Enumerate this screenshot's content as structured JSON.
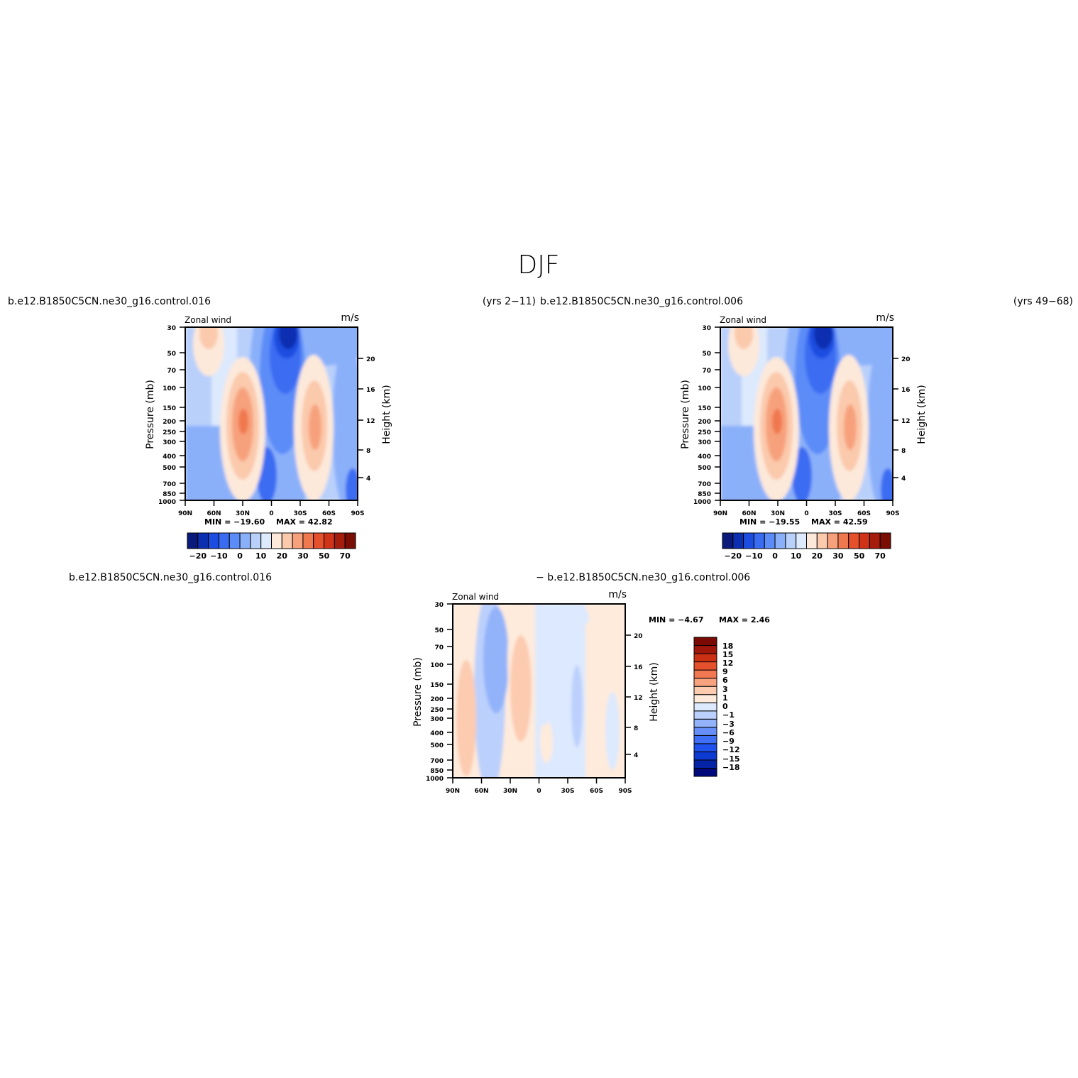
{
  "title": "DJF",
  "chart_data": [
    {
      "type": "heatmap",
      "left_string": "b.e12.B1850C5CN.ne30_g16.control.016",
      "right_string": "(yrs 2-11)",
      "field_label": "Zonal wind",
      "units": "m/s",
      "min_label": "MIN = -19.60",
      "max_label": "MAX = 42.82",
      "min": -19.6,
      "max": 42.82,
      "xlabel": "",
      "ylabel": "Pressure (mb)",
      "ylabel_right": "Height (km)",
      "x_ticks": [
        "90N",
        "60N",
        "30N",
        "0",
        "30S",
        "60S",
        "90S"
      ],
      "y_ticks": [
        "30",
        "50",
        "70",
        "100",
        "150",
        "200",
        "250",
        "300",
        "400",
        "500",
        "700",
        "850",
        "1000"
      ],
      "height_ticks": [
        "20",
        "16",
        "12",
        "8",
        "4"
      ],
      "colorbar_labels": [
        "-20",
        "-10",
        "0",
        "10",
        "20",
        "30",
        "50",
        "70"
      ]
    },
    {
      "type": "heatmap",
      "left_string": "b.e12.B1850C5CN.ne30_g16.control.006",
      "right_string": "(yrs 49-68)",
      "field_label": "Zonal wind",
      "units": "m/s",
      "min_label": "MIN = -19.55",
      "max_label": "MAX = 42.59",
      "min": -19.55,
      "max": 42.59,
      "xlabel": "",
      "ylabel": "Pressure (mb)",
      "ylabel_right": "Height (km)",
      "x_ticks": [
        "90N",
        "60N",
        "30N",
        "0",
        "30S",
        "60S",
        "90S"
      ],
      "y_ticks": [
        "30",
        "50",
        "70",
        "100",
        "150",
        "200",
        "250",
        "300",
        "400",
        "500",
        "700",
        "850",
        "1000"
      ],
      "height_ticks": [
        "20",
        "16",
        "12",
        "8",
        "4"
      ],
      "colorbar_labels": [
        "-20",
        "-10",
        "0",
        "10",
        "20",
        "30",
        "50",
        "70"
      ]
    },
    {
      "type": "heatmap",
      "left_string": "b.e12.B1850C5CN.ne30_g16.control.016",
      "center_string": "- b.e12.B1850C5CN.ne30_g16.control.006",
      "field_label": "Zonal wind",
      "units": "m/s",
      "min_label": "MIN = -4.67",
      "max_label": "MAX = 2.46",
      "min": -4.67,
      "max": 2.46,
      "xlabel": "",
      "ylabel": "Pressure (mb)",
      "ylabel_right": "Height (km)",
      "x_ticks": [
        "90N",
        "60N",
        "30N",
        "0",
        "30S",
        "60S",
        "90S"
      ],
      "y_ticks": [
        "30",
        "50",
        "70",
        "100",
        "150",
        "200",
        "250",
        "300",
        "400",
        "500",
        "700",
        "850",
        "1000"
      ],
      "height_ticks": [
        "20",
        "16",
        "12",
        "8",
        "4"
      ],
      "colorbar_labels": [
        "18",
        "15",
        "12",
        "9",
        "6",
        "3",
        "1",
        "0",
        "-1",
        "-3",
        "-6",
        "-9",
        "-12",
        "-15",
        "-18"
      ]
    }
  ],
  "colors": {
    "wind_palette": [
      "#0a1a7a",
      "#0b2fb0",
      "#1d4de0",
      "#3a6cf2",
      "#5c8cf8",
      "#8bb0fa",
      "#b9d0fb",
      "#dde9fd",
      "#fde9da",
      "#fbc9ac",
      "#f7a17c",
      "#f0784f",
      "#e5512d",
      "#cf3318",
      "#a51d0c",
      "#7a0e05"
    ],
    "diff_palette": [
      "#000a7a",
      "#0523a6",
      "#0d3ad0",
      "#1f52ec",
      "#3e6ff5",
      "#6690f8",
      "#92b2fa",
      "#bbd0fc",
      "#dde9fe",
      "#feebdc",
      "#fccbb0",
      "#f8a27f",
      "#f27852",
      "#e5512c",
      "#cb3015",
      "#9f170a",
      "#7a0a03"
    ]
  }
}
